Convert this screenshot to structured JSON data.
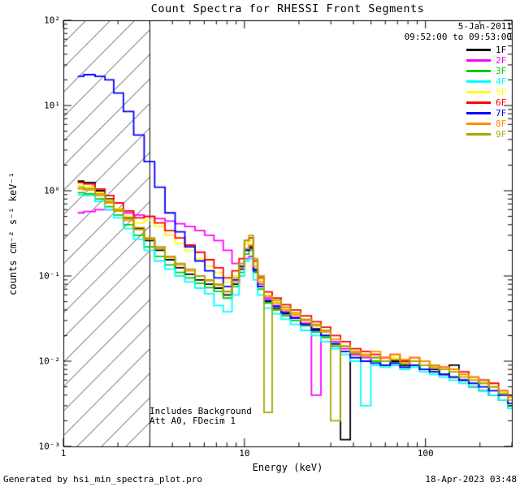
{
  "footer": {
    "left": "Generated by hsi_min_spectra_plot.pro",
    "right": "18-Apr-2023 03:48"
  },
  "chart_data": {
    "type": "line",
    "scale": "log-log",
    "line_style": "step-histogram",
    "title": "Count Spectra for RHESSI Front Segments",
    "date_label": "5-Jan-2011",
    "time_range_label": "09:52:00 to 09:53:00",
    "xlabel": "Energy (keV)",
    "ylabel": "counts cm⁻² s⁻¹ keV⁻¹",
    "xlim": [
      1,
      300
    ],
    "ylim": [
      0.001,
      100
    ],
    "xticks": [
      1,
      10,
      100
    ],
    "ytick_exponents": [
      2,
      1,
      0,
      -1,
      -2,
      -3
    ],
    "hatch_region": {
      "from": 1,
      "to": 3
    },
    "annotations": [
      "Includes Background",
      "Att A0, FDecim 1"
    ],
    "x": [
      1.2,
      1.4,
      1.6,
      1.8,
      2.0,
      2.3,
      2.6,
      3.0,
      3.4,
      3.9,
      4.4,
      5.0,
      5.7,
      6.4,
      7.2,
      8.1,
      9.0,
      9.7,
      10.3,
      10.9,
      11.5,
      12.2,
      13.5,
      15,
      17,
      19,
      22,
      25,
      28,
      32,
      36,
      41,
      47,
      53,
      60,
      68,
      77,
      87,
      99,
      112,
      127,
      144,
      163,
      185,
      210,
      238,
      270,
      300
    ],
    "series": [
      {
        "name": "1F",
        "color": "#000000",
        "y": [
          1.3,
          1.25,
          1.0,
          0.8,
          0.62,
          0.48,
          0.36,
          0.26,
          0.2,
          0.155,
          0.125,
          0.105,
          0.09,
          0.08,
          0.072,
          0.06,
          0.08,
          0.12,
          0.2,
          0.22,
          0.12,
          0.075,
          0.05,
          0.042,
          0.036,
          0.032,
          0.027,
          0.024,
          0.02,
          0.016,
          0.0012,
          0.012,
          0.01,
          0.011,
          0.009,
          0.01,
          0.009,
          0.01,
          0.009,
          0.008,
          0.007,
          0.009,
          0.006,
          0.005,
          0.006,
          0.004,
          0.0035,
          0.003
        ]
      },
      {
        "name": "2F",
        "color": "#ff00ff",
        "y": [
          0.55,
          0.57,
          0.6,
          0.6,
          0.58,
          0.55,
          0.52,
          0.5,
          0.47,
          0.44,
          0.41,
          0.38,
          0.34,
          0.3,
          0.26,
          0.2,
          0.14,
          0.13,
          0.16,
          0.17,
          0.11,
          0.08,
          0.055,
          0.045,
          0.038,
          0.033,
          0.028,
          0.004,
          0.022,
          0.017,
          0.014,
          0.012,
          0.011,
          0.01,
          0.011,
          0.009,
          0.01,
          0.009,
          0.008,
          0.0075,
          0.007,
          0.0065,
          0.006,
          0.005,
          0.0045,
          0.004,
          0.0035,
          0.003
        ]
      },
      {
        "name": "3F",
        "color": "#00cc00",
        "y": [
          0.95,
          0.92,
          0.8,
          0.65,
          0.52,
          0.4,
          0.3,
          0.22,
          0.17,
          0.135,
          0.11,
          0.095,
          0.082,
          0.073,
          0.066,
          0.055,
          0.075,
          0.11,
          0.18,
          0.2,
          0.11,
          0.07,
          0.048,
          0.04,
          0.034,
          0.03,
          0.026,
          0.022,
          0.019,
          0.015,
          0.013,
          0.011,
          0.01,
          0.01,
          0.009,
          0.0095,
          0.0085,
          0.009,
          0.008,
          0.0075,
          0.007,
          0.0065,
          0.006,
          0.005,
          0.0045,
          0.004,
          0.0035,
          0.003
        ]
      },
      {
        "name": "4F",
        "color": "#00ffff",
        "y": [
          0.9,
          0.88,
          0.75,
          0.6,
          0.48,
          0.36,
          0.27,
          0.2,
          0.15,
          0.12,
          0.1,
          0.085,
          0.072,
          0.062,
          0.045,
          0.038,
          0.06,
          0.1,
          0.15,
          0.16,
          0.09,
          0.06,
          0.042,
          0.036,
          0.031,
          0.027,
          0.023,
          0.02,
          0.017,
          0.014,
          0.012,
          0.01,
          0.003,
          0.009,
          0.0085,
          0.009,
          0.008,
          0.0085,
          0.0075,
          0.007,
          0.0065,
          0.006,
          0.0055,
          0.005,
          0.0045,
          0.004,
          0.0035,
          0.0028
        ]
      },
      {
        "name": "5F",
        "color": "#ffff00",
        "y": [
          1.15,
          1.1,
          0.95,
          0.78,
          0.62,
          0.5,
          0.42,
          0.45,
          0.38,
          0.3,
          0.24,
          0.2,
          0.16,
          0.13,
          0.11,
          0.085,
          0.1,
          0.14,
          0.24,
          0.26,
          0.14,
          0.09,
          0.06,
          0.05,
          0.042,
          0.036,
          0.03,
          0.026,
          0.022,
          0.018,
          0.015,
          0.013,
          0.012,
          0.011,
          0.01,
          0.011,
          0.0095,
          0.01,
          0.009,
          0.0085,
          0.008,
          0.0075,
          0.007,
          0.006,
          0.0055,
          0.005,
          0.0042,
          0.0035
        ]
      },
      {
        "name": "6F",
        "color": "#ff0000",
        "y": [
          1.25,
          1.2,
          1.05,
          0.88,
          0.72,
          0.58,
          0.48,
          0.5,
          0.42,
          0.34,
          0.28,
          0.23,
          0.19,
          0.155,
          0.125,
          0.095,
          0.115,
          0.16,
          0.26,
          0.28,
          0.15,
          0.095,
          0.065,
          0.055,
          0.046,
          0.04,
          0.034,
          0.029,
          0.025,
          0.02,
          0.017,
          0.014,
          0.013,
          0.012,
          0.011,
          0.012,
          0.01,
          0.011,
          0.01,
          0.009,
          0.0085,
          0.008,
          0.0075,
          0.0065,
          0.006,
          0.0055,
          0.0045,
          0.004
        ]
      },
      {
        "name": "7F",
        "color": "#0000ff",
        "y": [
          22,
          23,
          22,
          20,
          14,
          8.5,
          4.5,
          2.2,
          1.1,
          0.55,
          0.33,
          0.22,
          0.15,
          0.115,
          0.095,
          0.075,
          0.09,
          0.13,
          0.2,
          0.21,
          0.115,
          0.075,
          0.052,
          0.044,
          0.037,
          0.032,
          0.027,
          0.023,
          0.02,
          0.016,
          0.013,
          0.011,
          0.01,
          0.0095,
          0.009,
          0.0095,
          0.0085,
          0.009,
          0.008,
          0.0075,
          0.007,
          0.0065,
          0.006,
          0.0055,
          0.005,
          0.0045,
          0.004,
          0.0032
        ]
      },
      {
        "name": "8F",
        "color": "#ff8c00",
        "y": [
          1.05,
          1.02,
          0.88,
          0.72,
          0.58,
          0.45,
          0.35,
          0.27,
          0.21,
          0.165,
          0.135,
          0.115,
          0.1,
          0.088,
          0.078,
          0.065,
          0.085,
          0.125,
          0.21,
          0.23,
          0.13,
          0.085,
          0.058,
          0.048,
          0.04,
          0.035,
          0.03,
          0.026,
          0.022,
          0.018,
          0.015,
          0.013,
          0.012,
          0.013,
          0.011,
          0.012,
          0.0105,
          0.011,
          0.01,
          0.009,
          0.0085,
          0.008,
          0.007,
          0.0065,
          0.006,
          0.005,
          0.0045,
          0.0038
        ]
      },
      {
        "name": "9F",
        "color": "#a8a800",
        "y": [
          1.1,
          1.06,
          0.92,
          0.75,
          0.6,
          0.47,
          0.37,
          0.28,
          0.22,
          0.17,
          0.14,
          0.12,
          0.1,
          0.09,
          0.08,
          0.066,
          0.095,
          0.14,
          0.26,
          0.3,
          0.16,
          0.1,
          0.0025,
          0.052,
          0.043,
          0.037,
          0.031,
          0.027,
          0.023,
          0.002,
          0.015,
          0.0125,
          0.0115,
          0.011,
          0.01,
          0.0105,
          0.0095,
          0.01,
          0.009,
          0.0085,
          0.008,
          0.0075,
          0.0065,
          0.006,
          0.0055,
          0.005,
          0.0042,
          0.0035
        ]
      }
    ]
  }
}
